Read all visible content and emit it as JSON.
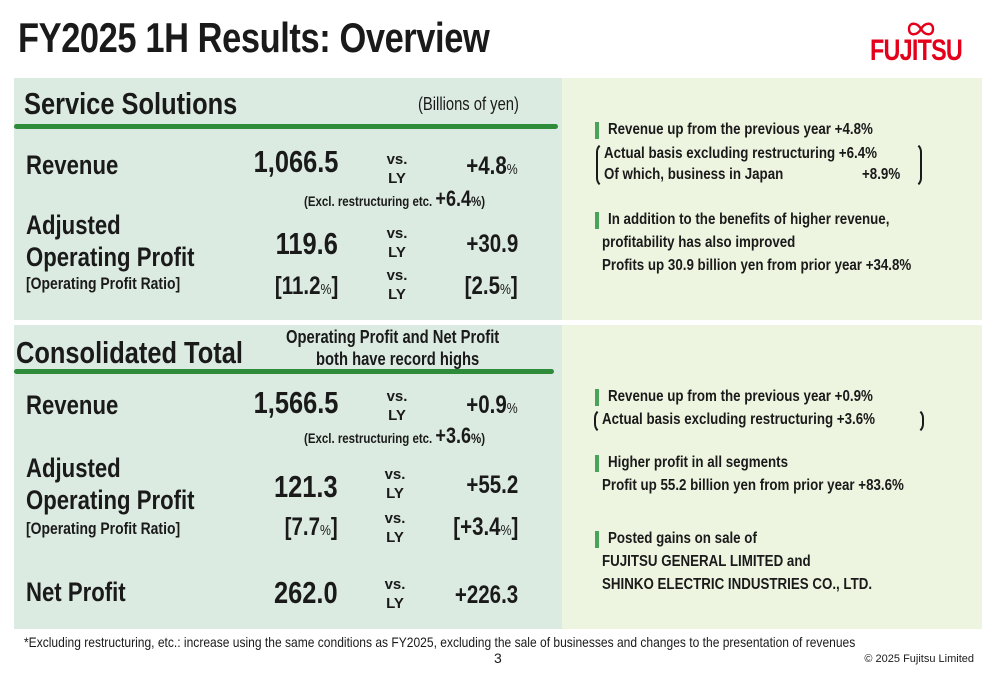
{
  "title": "FY2025 1H Results: Overview",
  "logo": {
    "text": "FUJITSU",
    "color": "#e4001b"
  },
  "unit_note": "(Billions of yen)",
  "colors": {
    "left_panel": "#dcebe1",
    "right_panel": "#edf5e1",
    "rule": "#2e8b3a"
  },
  "service_solutions": {
    "title": "Service Solutions",
    "revenue": {
      "label": "Revenue",
      "value": "1,066.5",
      "vs1": "vs.",
      "vs2": "LY",
      "change": "+4.8",
      "pct": "%",
      "excl_text": "(Excl. restructuring etc. ",
      "excl_value": "+6.4",
      "excl_end": "%)"
    },
    "op": {
      "label1": "Adjusted",
      "label2": "Operating Profit",
      "value": "119.6",
      "vs1": "vs.",
      "vs2": "LY",
      "change": "+30.9"
    },
    "ratio": {
      "label": "[Operating Profit Ratio]",
      "value_open": "[11.2",
      "pct": "%",
      "value_close": "]",
      "vs1": "vs.",
      "vs2": "LY",
      "change_open": "[2.5",
      "change_close": "]"
    },
    "notes": [
      "Revenue up from the previous year  +4.8%",
      "Actual basis excluding restructuring +6.4%",
      "Of which, business in Japan",
      "+8.9%",
      "In addition to the benefits of higher revenue,",
      "profitability has also improved",
      "Profits up 30.9 billion yen from prior year +34.8%"
    ]
  },
  "consolidated": {
    "title": "Consolidated Total",
    "headline1": "Operating Profit and Net Profit",
    "headline2": "both have record highs",
    "revenue": {
      "label": "Revenue",
      "value": "1,566.5",
      "vs1": "vs.",
      "vs2": "LY",
      "change": "+0.9",
      "pct": "%",
      "excl_text": "(Excl. restructuring etc. ",
      "excl_value": "+3.6",
      "excl_end": "%)"
    },
    "op": {
      "label1": "Adjusted",
      "label2": "Operating Profit",
      "value": "121.3",
      "vs1": "vs.",
      "vs2": "LY",
      "change": "+55.2"
    },
    "ratio": {
      "label": "[Operating Profit Ratio]",
      "value_open": "[7.7",
      "pct": "%",
      "value_close": "]",
      "vs1": "vs.",
      "vs2": "LY",
      "change_open": "[+3.4",
      "change_close": "]"
    },
    "net": {
      "label": "Net Profit",
      "value": "262.0",
      "vs1": "vs.",
      "vs2": "LY",
      "change": "+226.3"
    },
    "notes": [
      "Revenue up from the previous year  +0.9%",
      "Actual basis excluding restructuring +3.6%",
      "Higher profit in all segments",
      "Profit up 55.2 billion yen from prior year   +83.6%",
      "Posted gains on sale of",
      "FUJITSU GENERAL LIMITED and",
      "SHINKO ELECTRIC INDUSTRIES CO., LTD."
    ]
  },
  "footnote": "*Excluding restructuring, etc.: increase using the same conditions as FY2025, excluding the sale of businesses and changes to the presentation of revenues",
  "page_number": "3",
  "copyright": "© 2025 Fujitsu Limited"
}
